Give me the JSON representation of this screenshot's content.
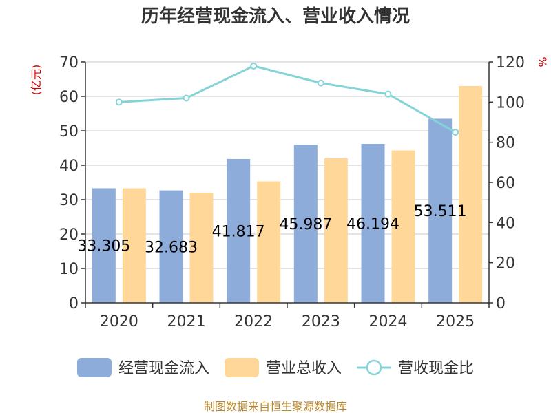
{
  "chart_data": {
    "type": "bar",
    "title": "历年经营现金流入、营业收入情况",
    "categories": [
      "2020",
      "2021",
      "2022",
      "2023",
      "2024",
      "2025"
    ],
    "series": [
      {
        "name": "经营现金流入",
        "axis": "left",
        "color": "#8eacd9",
        "values": [
          33.305,
          32.683,
          41.817,
          45.987,
          46.194,
          53.511
        ],
        "data_labels": [
          "33.305",
          "32.683",
          "41.817",
          "45.987",
          "46.194",
          "53.511"
        ]
      },
      {
        "name": "营业总收入",
        "axis": "left",
        "color": "#ffd899",
        "values": [
          33.3,
          32.0,
          35.3,
          42.0,
          44.3,
          63.0
        ]
      },
      {
        "name": "营收现金比",
        "axis": "right",
        "type": "line",
        "color": "#84d3d7",
        "values": [
          100,
          102,
          118,
          109.5,
          104,
          85
        ]
      }
    ],
    "y_left": {
      "unit": "(亿元)",
      "min": 0,
      "max": 70,
      "ticks": [
        0,
        10,
        20,
        30,
        40,
        50,
        60,
        70
      ]
    },
    "y_right": {
      "unit": "%",
      "min": 0,
      "max": 120,
      "ticks": [
        0,
        20,
        40,
        60,
        80,
        100,
        120
      ]
    },
    "grid": true,
    "legend_position": "bottom",
    "source": "制图数据来自恒生聚源数据库"
  }
}
